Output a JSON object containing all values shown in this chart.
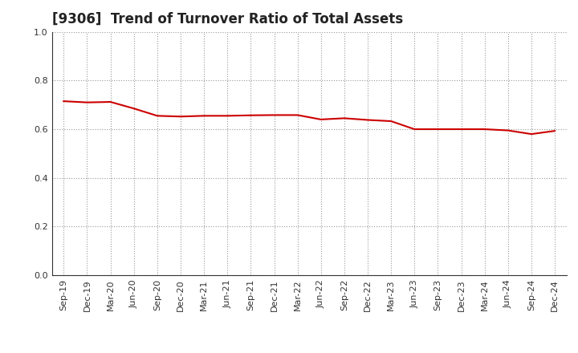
{
  "title": "[9306]  Trend of Turnover Ratio of Total Assets",
  "x_labels": [
    "Sep-19",
    "Dec-19",
    "Mar-20",
    "Jun-20",
    "Sep-20",
    "Dec-20",
    "Mar-21",
    "Jun-21",
    "Sep-21",
    "Dec-21",
    "Mar-22",
    "Jun-22",
    "Sep-22",
    "Dec-22",
    "Mar-23",
    "Jun-23",
    "Sep-23",
    "Dec-23",
    "Mar-24",
    "Jun-24",
    "Sep-24",
    "Dec-24"
  ],
  "values": [
    0.715,
    0.71,
    0.712,
    0.685,
    0.655,
    0.652,
    0.655,
    0.655,
    0.657,
    0.658,
    0.658,
    0.64,
    0.645,
    0.638,
    0.633,
    0.6,
    0.6,
    0.6,
    0.6,
    0.595,
    0.58,
    0.593
  ],
  "line_color": "#cc0000",
  "line_width": 1.5,
  "ylim": [
    0.0,
    1.0
  ],
  "yticks": [
    0.0,
    0.2,
    0.4,
    0.6,
    0.8,
    1.0
  ],
  "grid_color": "#999999",
  "background_color": "#ffffff",
  "title_fontsize": 12,
  "tick_fontsize": 8,
  "title_color": "#222222"
}
